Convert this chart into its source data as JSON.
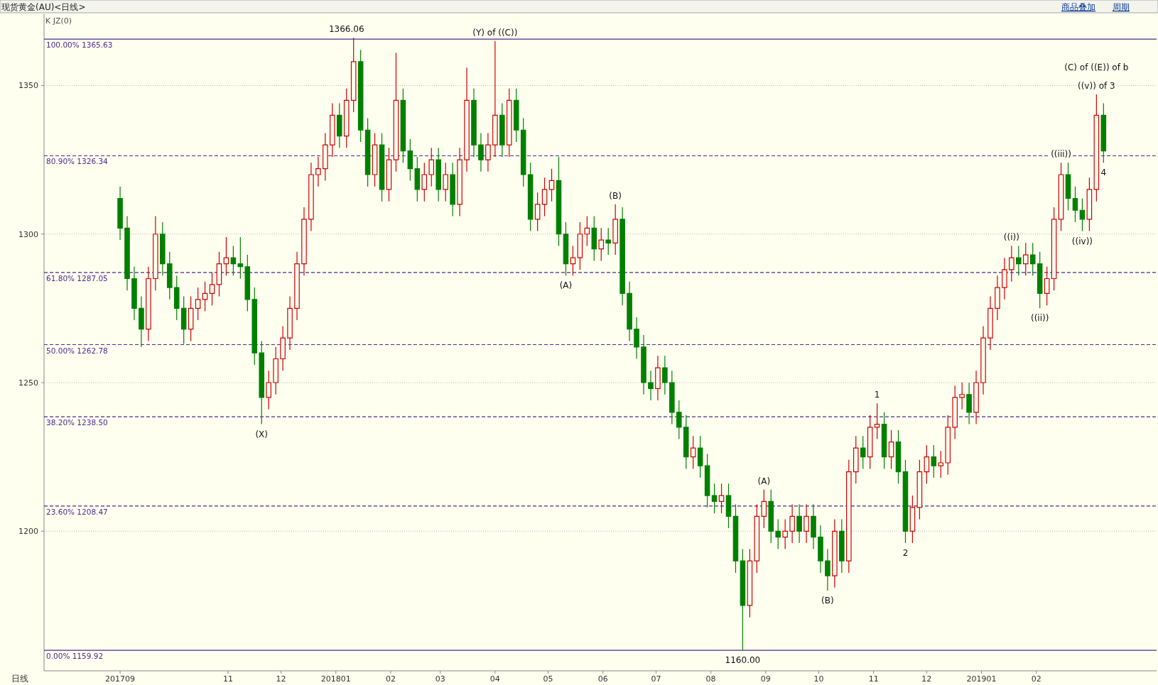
{
  "chart_data": {
    "type": "candlestick",
    "title": "现货黄金(AU)<日线>",
    "subtitle": "K  JZ(0)",
    "xlabel": "日线",
    "annotations": [
      "商品叠加",
      "周期",
      {
        "text": "(Y) of ((C))",
        "x": "2018-04-01",
        "y": 1365
      },
      {
        "text": "1366.06",
        "x": "2018-01-07",
        "y": 1366.06
      },
      {
        "text": "(X)",
        "x": "2017-11-20",
        "y": 1236
      },
      {
        "text": "(A)",
        "x": "2018-05-11",
        "y": 1286
      },
      {
        "text": "(B)",
        "x": "2018-06-08",
        "y": 1310
      },
      {
        "text": "(A)",
        "x": "2018-08-31",
        "y": 1214
      },
      {
        "text": "(B)",
        "x": "2018-10-06",
        "y": 1180
      },
      {
        "text": "1160.00",
        "x": "2018-08-19",
        "y": 1160
      },
      {
        "text": "1",
        "x": "2018-11-03",
        "y": 1243
      },
      {
        "text": "2",
        "x": "2018-11-19",
        "y": 1196
      },
      {
        "text": "((i))",
        "x": "2019-01-18",
        "y": 1296
      },
      {
        "text": "((ii))",
        "x": "2019-02-03",
        "y": 1275
      },
      {
        "text": "((iii))",
        "x": "2019-02-15",
        "y": 1324
      },
      {
        "text": "((iv))",
        "x": "2019-02-27",
        "y": 1301
      },
      {
        "text": "4",
        "x": "2019-03-11",
        "y": 1324
      },
      {
        "text": "((v)) of 3",
        "x": "2019-03-07",
        "y": 1347
      },
      {
        "text": "(C) of ((E)) of b",
        "x": "2019-03-07",
        "y": 1347
      }
    ],
    "x": [
      "2017-09-01",
      "2017-09-05",
      "2017-09-09",
      "2017-09-13",
      "2017-09-17",
      "2017-09-21",
      "2017-09-25",
      "2017-09-29",
      "2017-10-03",
      "2017-10-07",
      "2017-10-11",
      "2017-10-15",
      "2017-10-19",
      "2017-10-23",
      "2017-10-27",
      "2017-10-31",
      "2017-11-04",
      "2017-11-08",
      "2017-11-12",
      "2017-11-16",
      "2017-11-20",
      "2017-11-24",
      "2017-11-28",
      "2017-12-02",
      "2017-12-06",
      "2017-12-10",
      "2017-12-14",
      "2017-12-18",
      "2017-12-22",
      "2017-12-26",
      "2017-12-30",
      "2018-01-03",
      "2018-01-07",
      "2018-01-11",
      "2018-01-15",
      "2018-01-19",
      "2018-01-23",
      "2018-01-27",
      "2018-01-31",
      "2018-02-04",
      "2018-02-08",
      "2018-02-12",
      "2018-02-16",
      "2018-02-20",
      "2018-02-24",
      "2018-02-28",
      "2018-03-04",
      "2018-03-08",
      "2018-03-12",
      "2018-03-16",
      "2018-03-20",
      "2018-03-24",
      "2018-03-28",
      "2018-04-01",
      "2018-04-05",
      "2018-04-09",
      "2018-04-13",
      "2018-04-17",
      "2018-04-21",
      "2018-04-25",
      "2018-04-29",
      "2018-05-03",
      "2018-05-07",
      "2018-05-11",
      "2018-05-15",
      "2018-05-19",
      "2018-05-23",
      "2018-05-27",
      "2018-05-31",
      "2018-06-04",
      "2018-06-08",
      "2018-06-12",
      "2018-06-16",
      "2018-06-20",
      "2018-06-24",
      "2018-06-28",
      "2018-07-02",
      "2018-07-06",
      "2018-07-10",
      "2018-07-14",
      "2018-07-18",
      "2018-07-22",
      "2018-07-26",
      "2018-07-30",
      "2018-08-03",
      "2018-08-07",
      "2018-08-11",
      "2018-08-15",
      "2018-08-19",
      "2018-08-23",
      "2018-08-27",
      "2018-08-31",
      "2018-09-04",
      "2018-09-08",
      "2018-09-12",
      "2018-09-16",
      "2018-09-20",
      "2018-09-24",
      "2018-09-28",
      "2018-10-02",
      "2018-10-06",
      "2018-10-10",
      "2018-10-14",
      "2018-10-18",
      "2018-10-22",
      "2018-10-26",
      "2018-10-30",
      "2018-11-03",
      "2018-11-07",
      "2018-11-11",
      "2018-11-15",
      "2018-11-19",
      "2018-11-23",
      "2018-11-27",
      "2018-12-01",
      "2018-12-05",
      "2018-12-09",
      "2018-12-13",
      "2018-12-17",
      "2018-12-21",
      "2018-12-25",
      "2018-12-29",
      "2019-01-02",
      "2019-01-06",
      "2019-01-10",
      "2019-01-14",
      "2019-01-18",
      "2019-01-22",
      "2019-01-26",
      "2019-01-30",
      "2019-02-03",
      "2019-02-07",
      "2019-02-11",
      "2019-02-15",
      "2019-02-19",
      "2019-02-23",
      "2019-02-27",
      "2019-03-03",
      "2019-03-07",
      "2019-03-11"
    ],
    "ohlc": [
      [
        1312,
        1316,
        1298,
        1302
      ],
      [
        1302,
        1306,
        1281,
        1285
      ],
      [
        1285,
        1289,
        1271,
        1275
      ],
      [
        1275,
        1279,
        1262,
        1268
      ],
      [
        1268,
        1289,
        1264,
        1285
      ],
      [
        1285,
        1306,
        1281,
        1300
      ],
      [
        1300,
        1304,
        1286,
        1290
      ],
      [
        1290,
        1294,
        1278,
        1282
      ],
      [
        1282,
        1286,
        1271,
        1275
      ],
      [
        1275,
        1279,
        1263,
        1268
      ],
      [
        1268,
        1279,
        1264,
        1275
      ],
      [
        1275,
        1282,
        1271,
        1278
      ],
      [
        1278,
        1284,
        1274,
        1280
      ],
      [
        1280,
        1287,
        1276,
        1283
      ],
      [
        1283,
        1294,
        1279,
        1290
      ],
      [
        1290,
        1299,
        1286,
        1292
      ],
      [
        1292,
        1296,
        1286,
        1290
      ],
      [
        1290,
        1299,
        1285,
        1289
      ],
      [
        1289,
        1293,
        1274,
        1278
      ],
      [
        1278,
        1282,
        1256,
        1260
      ],
      [
        1260,
        1264,
        1236,
        1245
      ],
      [
        1245,
        1254,
        1241,
        1250
      ],
      [
        1250,
        1262,
        1246,
        1258
      ],
      [
        1258,
        1269,
        1254,
        1265
      ],
      [
        1265,
        1279,
        1261,
        1275
      ],
      [
        1275,
        1294,
        1271,
        1290
      ],
      [
        1290,
        1309,
        1286,
        1305
      ],
      [
        1305,
        1324,
        1301,
        1320
      ],
      [
        1320,
        1326,
        1316,
        1322
      ],
      [
        1322,
        1334,
        1318,
        1330
      ],
      [
        1330,
        1344,
        1326,
        1340
      ],
      [
        1340,
        1344,
        1329,
        1333
      ],
      [
        1333,
        1349,
        1329,
        1345
      ],
      [
        1345,
        1366.06,
        1341,
        1358
      ],
      [
        1358,
        1362,
        1331,
        1335
      ],
      [
        1335,
        1339,
        1316,
        1320
      ],
      [
        1320,
        1334,
        1316,
        1330
      ],
      [
        1330,
        1334,
        1311,
        1315
      ],
      [
        1315,
        1329,
        1311,
        1325
      ],
      [
        1325,
        1361,
        1321,
        1345
      ],
      [
        1345,
        1349,
        1324,
        1328
      ],
      [
        1328,
        1332,
        1318,
        1322
      ],
      [
        1322,
        1326,
        1311,
        1315
      ],
      [
        1315,
        1324,
        1311,
        1320
      ],
      [
        1320,
        1329,
        1316,
        1325
      ],
      [
        1325,
        1329,
        1311,
        1315
      ],
      [
        1315,
        1324,
        1311,
        1320
      ],
      [
        1320,
        1324,
        1306,
        1310
      ],
      [
        1310,
        1329,
        1306,
        1325
      ],
      [
        1325,
        1356,
        1321,
        1345
      ],
      [
        1345,
        1349,
        1326,
        1330
      ],
      [
        1330,
        1334,
        1321,
        1325
      ],
      [
        1325,
        1334,
        1321,
        1330
      ],
      [
        1330,
        1365,
        1326,
        1340
      ],
      [
        1340,
        1344,
        1326,
        1330
      ],
      [
        1330,
        1349,
        1326,
        1345
      ],
      [
        1345,
        1349,
        1331,
        1335
      ],
      [
        1335,
        1339,
        1316,
        1320
      ],
      [
        1320,
        1324,
        1301,
        1305
      ],
      [
        1305,
        1314,
        1301,
        1310
      ],
      [
        1310,
        1319,
        1306,
        1315
      ],
      [
        1315,
        1322,
        1311,
        1318
      ],
      [
        1318,
        1326,
        1296,
        1300
      ],
      [
        1300,
        1304,
        1286,
        1290
      ],
      [
        1290,
        1296,
        1286,
        1292
      ],
      [
        1292,
        1304,
        1288,
        1300
      ],
      [
        1300,
        1306,
        1296,
        1302
      ],
      [
        1302,
        1306,
        1291,
        1295
      ],
      [
        1295,
        1302,
        1291,
        1298
      ],
      [
        1298,
        1302,
        1293,
        1297
      ],
      [
        1297,
        1310,
        1293,
        1305
      ],
      [
        1305,
        1309,
        1276,
        1280
      ],
      [
        1280,
        1284,
        1264,
        1268
      ],
      [
        1268,
        1272,
        1258,
        1262
      ],
      [
        1262,
        1266,
        1246,
        1250
      ],
      [
        1250,
        1254,
        1244,
        1248
      ],
      [
        1248,
        1259,
        1244,
        1255
      ],
      [
        1255,
        1259,
        1246,
        1250
      ],
      [
        1250,
        1254,
        1236,
        1240
      ],
      [
        1240,
        1244,
        1231,
        1235
      ],
      [
        1235,
        1239,
        1221,
        1225
      ],
      [
        1225,
        1232,
        1221,
        1228
      ],
      [
        1228,
        1232,
        1218,
        1222
      ],
      [
        1222,
        1226,
        1208,
        1212
      ],
      [
        1212,
        1216,
        1206,
        1210
      ],
      [
        1210,
        1216,
        1206,
        1212
      ],
      [
        1212,
        1216,
        1201,
        1205
      ],
      [
        1205,
        1209,
        1186,
        1190
      ],
      [
        1190,
        1194,
        1160,
        1175
      ],
      [
        1175,
        1194,
        1171,
        1190
      ],
      [
        1190,
        1209,
        1186,
        1205
      ],
      [
        1205,
        1214,
        1201,
        1210
      ],
      [
        1210,
        1214,
        1196,
        1200
      ],
      [
        1200,
        1204,
        1194,
        1198
      ],
      [
        1198,
        1204,
        1194,
        1200
      ],
      [
        1200,
        1209,
        1196,
        1205
      ],
      [
        1205,
        1209,
        1196,
        1200
      ],
      [
        1200,
        1209,
        1196,
        1205
      ],
      [
        1205,
        1209,
        1194,
        1198
      ],
      [
        1198,
        1202,
        1186,
        1190
      ],
      [
        1190,
        1194,
        1180,
        1185
      ],
      [
        1185,
        1204,
        1181,
        1200
      ],
      [
        1200,
        1204,
        1186,
        1190
      ],
      [
        1190,
        1224,
        1186,
        1220
      ],
      [
        1220,
        1232,
        1216,
        1228
      ],
      [
        1228,
        1232,
        1221,
        1225
      ],
      [
        1225,
        1239,
        1221,
        1235
      ],
      [
        1235,
        1243,
        1231,
        1236
      ],
      [
        1236,
        1240,
        1221,
        1225
      ],
      [
        1225,
        1234,
        1221,
        1230
      ],
      [
        1230,
        1234,
        1216,
        1220
      ],
      [
        1220,
        1224,
        1196,
        1200
      ],
      [
        1200,
        1212,
        1196,
        1208
      ],
      [
        1208,
        1224,
        1204,
        1220
      ],
      [
        1220,
        1229,
        1216,
        1225
      ],
      [
        1225,
        1229,
        1218,
        1222
      ],
      [
        1222,
        1227,
        1218,
        1223
      ],
      [
        1223,
        1239,
        1219,
        1235
      ],
      [
        1235,
        1249,
        1231,
        1245
      ],
      [
        1245,
        1250,
        1241,
        1246
      ],
      [
        1246,
        1250,
        1236,
        1240
      ],
      [
        1240,
        1254,
        1236,
        1250
      ],
      [
        1250,
        1269,
        1246,
        1265
      ],
      [
        1265,
        1279,
        1261,
        1275
      ],
      [
        1275,
        1286,
        1271,
        1282
      ],
      [
        1282,
        1292,
        1278,
        1288
      ],
      [
        1288,
        1296,
        1284,
        1292
      ],
      [
        1292,
        1296,
        1286,
        1290
      ],
      [
        1290,
        1297,
        1286,
        1293
      ],
      [
        1293,
        1297,
        1286,
        1290
      ],
      [
        1290,
        1294,
        1275,
        1280
      ],
      [
        1280,
        1289,
        1276,
        1285
      ],
      [
        1285,
        1309,
        1281,
        1305
      ],
      [
        1305,
        1324,
        1301,
        1320
      ],
      [
        1320,
        1324,
        1308,
        1312
      ],
      [
        1312,
        1316,
        1304,
        1308
      ],
      [
        1308,
        1312,
        1301,
        1305
      ],
      [
        1305,
        1319,
        1301,
        1315
      ],
      [
        1315,
        1347,
        1311,
        1340
      ],
      [
        1340,
        1344,
        1324,
        1328
      ]
    ],
    "xlim": [
      "2017-07-20",
      "2019-04-10"
    ],
    "ylim": [
      1153,
      1374
    ],
    "xticks": [
      {
        "value": "2017-09-01",
        "label": "201709"
      },
      {
        "value": "2017-11-01",
        "label": "11"
      },
      {
        "value": "2017-12-01",
        "label": "12"
      },
      {
        "value": "2018-01-01",
        "label": "201801"
      },
      {
        "value": "2018-02-01",
        "label": "02"
      },
      {
        "value": "2018-03-01",
        "label": "03"
      },
      {
        "value": "2018-04-01",
        "label": "04"
      },
      {
        "value": "2018-05-01",
        "label": "05"
      },
      {
        "value": "2018-06-01",
        "label": "06"
      },
      {
        "value": "2018-07-01",
        "label": "07"
      },
      {
        "value": "2018-08-01",
        "label": "08"
      },
      {
        "value": "2018-09-01",
        "label": "09"
      },
      {
        "value": "2018-10-01",
        "label": "10"
      },
      {
        "value": "2018-11-01",
        "label": "11"
      },
      {
        "value": "2018-12-01",
        "label": "12"
      },
      {
        "value": "2019-01-01",
        "label": "201901"
      },
      {
        "value": "2019-02-01",
        "label": "02"
      }
    ],
    "yticks": [
      1200,
      1250,
      1300,
      1350
    ],
    "grid": "y",
    "ref_lines": [
      {
        "axis": "y",
        "value": 1365.63,
        "label": "100.00% 1365.63",
        "color": "#4b2a8c",
        "line_style": "solid"
      },
      {
        "axis": "y",
        "value": 1326.34,
        "label": "80.90% 1326.34",
        "color": "#4b2a8c",
        "line_style": "dashed"
      },
      {
        "axis": "y",
        "value": 1287.05,
        "label": "61.80% 1287.05",
        "color": "#4b2a8c",
        "line_style": "dashed"
      },
      {
        "axis": "y",
        "value": 1262.78,
        "label": "50.00% 1262.78",
        "color": "#4b2a8c",
        "line_style": "dashed"
      },
      {
        "axis": "y",
        "value": 1238.5,
        "label": "38.20% 1238.50",
        "color": "#4b2a8c",
        "line_style": "dashed"
      },
      {
        "axis": "y",
        "value": 1208.47,
        "label": "23.60% 1208.47",
        "color": "#4b2a8c",
        "line_style": "dashed"
      },
      {
        "axis": "y",
        "value": 1159.92,
        "label": "0.00% 1159.92",
        "color": "#4b2a8c",
        "line_style": "solid"
      }
    ]
  }
}
